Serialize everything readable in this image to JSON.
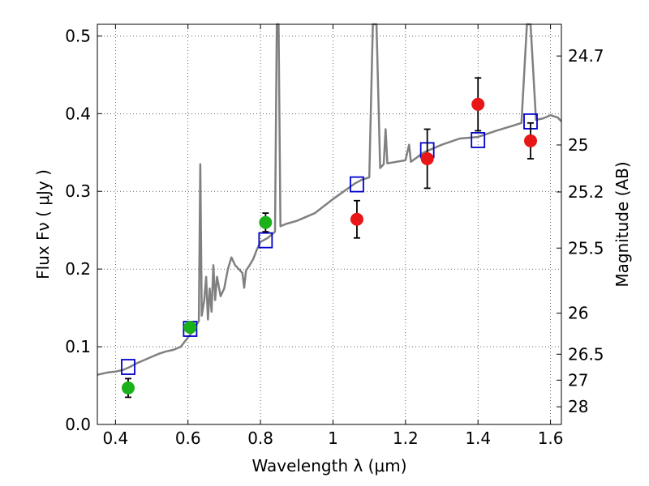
{
  "chart_data": {
    "type": "scatter",
    "xlabel": "Wavelength  λ (μm)",
    "ylabel": "Flux  Fν ( μJy )",
    "y2label": "Magnitude (AB)",
    "xlim": [
      0.35,
      1.63
    ],
    "ylim": [
      0.0,
      0.515
    ],
    "grid": true,
    "x_ticks": [
      0.4,
      0.6,
      0.8,
      1.0,
      1.2,
      1.4,
      1.6
    ],
    "x_tick_labels": [
      "0.4",
      "0.6",
      "0.8",
      "1",
      "1.2",
      "1.4",
      "1.6"
    ],
    "y_ticks": [
      0.0,
      0.1,
      0.2,
      0.3,
      0.4,
      0.5
    ],
    "y_tick_labels": [
      "0.0",
      "0.1",
      "0.2",
      "0.3",
      "0.4",
      "0.5"
    ],
    "magnitude_ticks": [
      {
        "label": "24.7",
        "flux": 0.4742
      },
      {
        "label": "25",
        "flux": 0.3597
      },
      {
        "label": "25.2",
        "flux": 0.2992
      },
      {
        "label": "25.5",
        "flux": 0.227
      },
      {
        "label": "26",
        "flux": 0.1432
      },
      {
        "label": "26.5",
        "flux": 0.0904
      },
      {
        "label": "27",
        "flux": 0.057
      },
      {
        "label": "28",
        "flux": 0.0227
      }
    ],
    "series": [
      {
        "kind": "model_spectrum",
        "color": "#808080",
        "points": [
          [
            0.35,
            0.064
          ],
          [
            0.36,
            0.065
          ],
          [
            0.38,
            0.067
          ],
          [
            0.4,
            0.068
          ],
          [
            0.42,
            0.07
          ],
          [
            0.44,
            0.074
          ],
          [
            0.46,
            0.079
          ],
          [
            0.48,
            0.083
          ],
          [
            0.5,
            0.087
          ],
          [
            0.52,
            0.091
          ],
          [
            0.54,
            0.094
          ],
          [
            0.56,
            0.096
          ],
          [
            0.58,
            0.1
          ],
          [
            0.6,
            0.112
          ],
          [
            0.61,
            0.118
          ],
          [
            0.62,
            0.126
          ],
          [
            0.63,
            0.133
          ],
          [
            0.634,
            0.335
          ],
          [
            0.638,
            0.14
          ],
          [
            0.645,
            0.16
          ],
          [
            0.65,
            0.19
          ],
          [
            0.655,
            0.135
          ],
          [
            0.66,
            0.175
          ],
          [
            0.665,
            0.145
          ],
          [
            0.67,
            0.205
          ],
          [
            0.675,
            0.16
          ],
          [
            0.68,
            0.19
          ],
          [
            0.69,
            0.165
          ],
          [
            0.7,
            0.175
          ],
          [
            0.71,
            0.2
          ],
          [
            0.72,
            0.215
          ],
          [
            0.73,
            0.205
          ],
          [
            0.74,
            0.2
          ],
          [
            0.75,
            0.195
          ],
          [
            0.755,
            0.176
          ],
          [
            0.76,
            0.198
          ],
          [
            0.77,
            0.205
          ],
          [
            0.78,
            0.213
          ],
          [
            0.79,
            0.225
          ],
          [
            0.8,
            0.235
          ],
          [
            0.82,
            0.24
          ],
          [
            0.84,
            0.248
          ],
          [
            0.845,
            0.515
          ],
          [
            0.85,
            0.515
          ],
          [
            0.855,
            0.255
          ],
          [
            0.87,
            0.258
          ],
          [
            0.9,
            0.262
          ],
          [
            0.95,
            0.272
          ],
          [
            1.0,
            0.29
          ],
          [
            1.03,
            0.3
          ],
          [
            1.06,
            0.31
          ],
          [
            1.08,
            0.315
          ],
          [
            1.1,
            0.318
          ],
          [
            1.11,
            0.515
          ],
          [
            1.12,
            0.515
          ],
          [
            1.13,
            0.33
          ],
          [
            1.14,
            0.335
          ],
          [
            1.145,
            0.38
          ],
          [
            1.15,
            0.336
          ],
          [
            1.2,
            0.34
          ],
          [
            1.21,
            0.36
          ],
          [
            1.215,
            0.338
          ],
          [
            1.25,
            0.35
          ],
          [
            1.3,
            0.36
          ],
          [
            1.35,
            0.368
          ],
          [
            1.4,
            0.37
          ],
          [
            1.45,
            0.378
          ],
          [
            1.5,
            0.385
          ],
          [
            1.52,
            0.388
          ],
          [
            1.535,
            0.515
          ],
          [
            1.545,
            0.515
          ],
          [
            1.56,
            0.392
          ],
          [
            1.58,
            0.394
          ],
          [
            1.6,
            0.398
          ],
          [
            1.62,
            0.395
          ],
          [
            1.63,
            0.39
          ]
        ]
      },
      {
        "kind": "model_photometry",
        "marker": "open-square",
        "color": "#0000cc",
        "points": [
          [
            0.435,
            0.074
          ],
          [
            0.606,
            0.123
          ],
          [
            0.814,
            0.237
          ],
          [
            1.066,
            0.309
          ],
          [
            1.26,
            0.353
          ],
          [
            1.4,
            0.366
          ],
          [
            1.545,
            0.39
          ]
        ]
      },
      {
        "kind": "optical_photometry",
        "marker": "filled-circle",
        "color": "#1ab11a",
        "points": [
          {
            "x": 0.435,
            "y": 0.047,
            "yerr": 0.012
          },
          {
            "x": 0.606,
            "y": 0.125,
            "yerr": 0.006
          },
          {
            "x": 0.814,
            "y": 0.26,
            "yerr": 0.012
          }
        ]
      },
      {
        "kind": "nir_photometry",
        "marker": "filled-circle",
        "color": "#e81616",
        "points": [
          {
            "x": 1.066,
            "y": 0.264,
            "yerr": 0.024
          },
          {
            "x": 1.26,
            "y": 0.342,
            "yerr": 0.038
          },
          {
            "x": 1.4,
            "y": 0.412,
            "yerr": 0.034
          },
          {
            "x": 1.545,
            "y": 0.365,
            "yerr": 0.023
          }
        ]
      }
    ]
  }
}
